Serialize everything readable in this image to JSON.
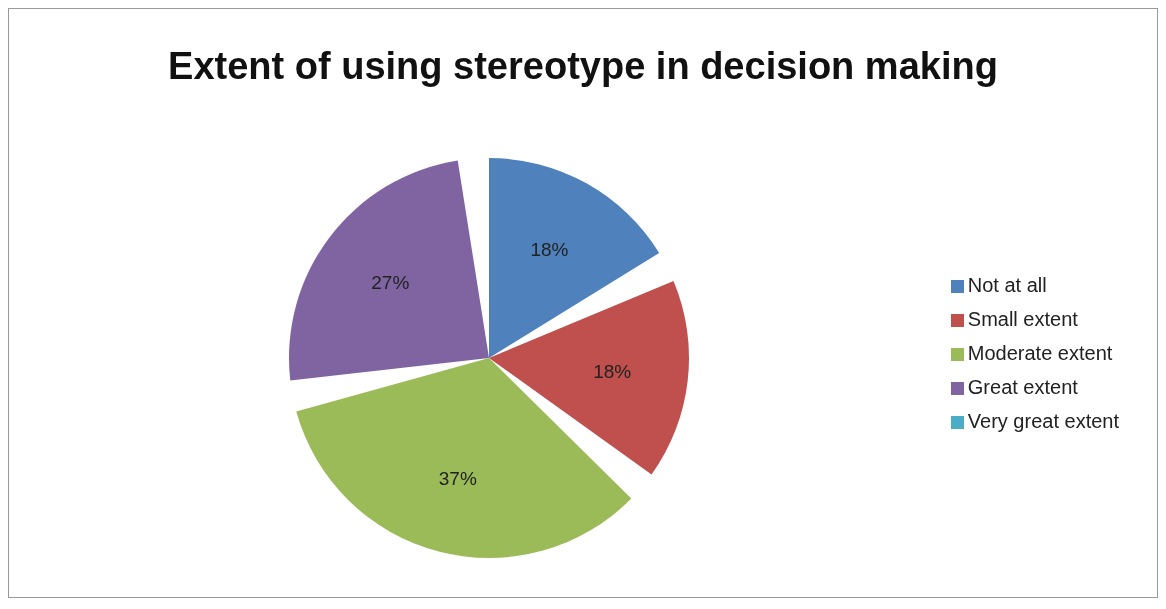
{
  "chart_data": {
    "type": "pie",
    "title": "Extent of using stereotype in decision making",
    "categories": [
      "Not at all",
      "Small extent",
      "Moderate extent",
      "Great extent",
      "Very great extent"
    ],
    "values": [
      18,
      18,
      37,
      27,
      0
    ],
    "colors": [
      "#4f81bd",
      "#c0504d",
      "#9bbb59",
      "#8064a2",
      "#4bacc6"
    ],
    "value_labels": [
      "18%",
      "18%",
      "37%",
      "27%",
      null
    ],
    "legend": "right"
  }
}
